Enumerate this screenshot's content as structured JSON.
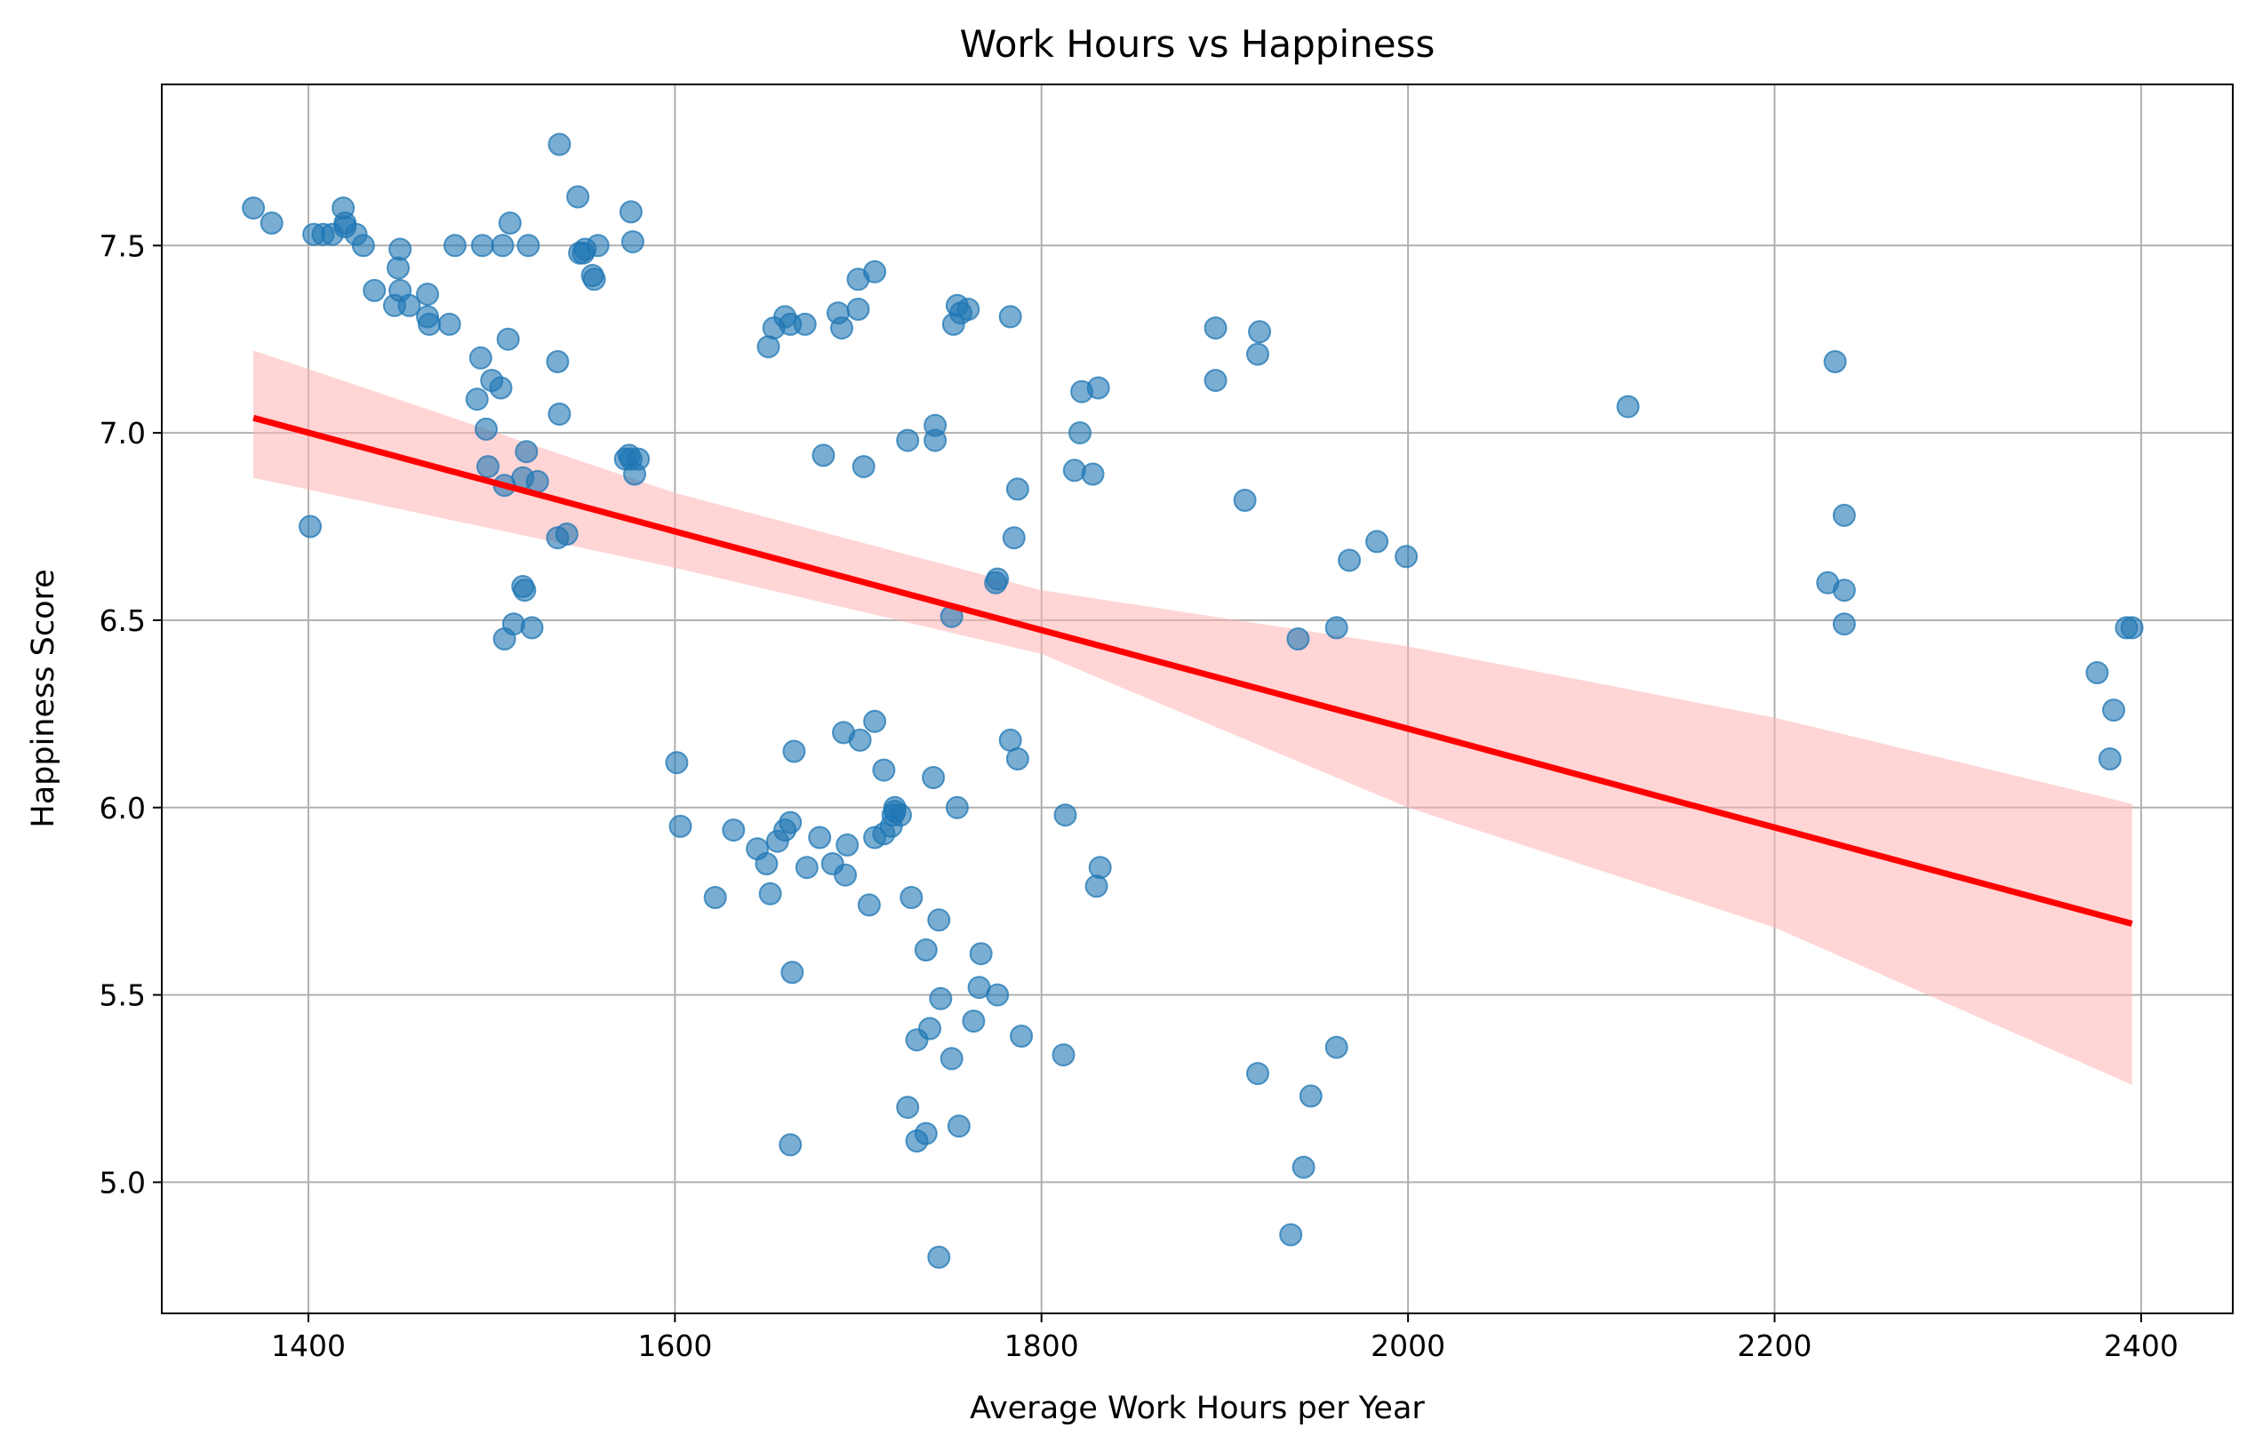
{
  "chart_data": {
    "type": "scatter",
    "title": "Work Hours vs Happiness",
    "xlabel": "Average Work Hours per Year",
    "ylabel": "Happiness Score",
    "xlim": [
      1320,
      2450
    ],
    "ylim": [
      4.65,
      7.93
    ],
    "xticks": [
      1400,
      1600,
      1800,
      2000,
      2200,
      2400
    ],
    "yticks": [
      5.0,
      5.5,
      6.0,
      6.5,
      7.0,
      7.5
    ],
    "xtick_labels": [
      "1400",
      "1600",
      "1800",
      "2000",
      "2200",
      "2400"
    ],
    "ytick_labels": [
      "5.0",
      "5.5",
      "6.0",
      "6.5",
      "7.0",
      "7.5"
    ],
    "grid": true,
    "colors": {
      "points": "#1f77b4",
      "trend": "#ff0000",
      "band": "#ffb3b3"
    },
    "trend": {
      "x": [
        1370,
        2395
      ],
      "y": [
        7.04,
        5.69
      ]
    },
    "band": {
      "x": [
        1370,
        1600,
        1800,
        2000,
        2200,
        2395
      ],
      "lower": [
        6.88,
        6.64,
        6.41,
        6.0,
        5.68,
        5.26
      ],
      "upper": [
        7.22,
        6.84,
        6.58,
        6.43,
        6.24,
        6.01
      ]
    },
    "points": [
      {
        "x": 1370,
        "y": 7.6
      },
      {
        "x": 1380,
        "y": 7.56
      },
      {
        "x": 1403,
        "y": 7.53
      },
      {
        "x": 1408,
        "y": 7.53
      },
      {
        "x": 1413,
        "y": 7.53
      },
      {
        "x": 1419,
        "y": 7.6
      },
      {
        "x": 1420,
        "y": 7.56
      },
      {
        "x": 1420,
        "y": 7.55
      },
      {
        "x": 1426,
        "y": 7.53
      },
      {
        "x": 1430,
        "y": 7.5
      },
      {
        "x": 1450,
        "y": 7.49
      },
      {
        "x": 1449,
        "y": 7.44
      },
      {
        "x": 1436,
        "y": 7.38
      },
      {
        "x": 1450,
        "y": 7.38
      },
      {
        "x": 1447,
        "y": 7.34
      },
      {
        "x": 1455,
        "y": 7.34
      },
      {
        "x": 1465,
        "y": 7.37
      },
      {
        "x": 1465,
        "y": 7.31
      },
      {
        "x": 1466,
        "y": 7.29
      },
      {
        "x": 1477,
        "y": 7.29
      },
      {
        "x": 1480,
        "y": 7.5
      },
      {
        "x": 1495,
        "y": 7.5
      },
      {
        "x": 1506,
        "y": 7.5
      },
      {
        "x": 1520,
        "y": 7.5
      },
      {
        "x": 1510,
        "y": 7.56
      },
      {
        "x": 1537,
        "y": 7.77
      },
      {
        "x": 1547,
        "y": 7.63
      },
      {
        "x": 1548,
        "y": 7.48
      },
      {
        "x": 1550,
        "y": 7.48
      },
      {
        "x": 1551,
        "y": 7.49
      },
      {
        "x": 1555,
        "y": 7.42
      },
      {
        "x": 1556,
        "y": 7.41
      },
      {
        "x": 1558,
        "y": 7.5
      },
      {
        "x": 1576,
        "y": 7.59
      },
      {
        "x": 1577,
        "y": 7.51
      },
      {
        "x": 1509,
        "y": 7.25
      },
      {
        "x": 1536,
        "y": 7.19
      },
      {
        "x": 1494,
        "y": 7.2
      },
      {
        "x": 1500,
        "y": 7.14
      },
      {
        "x": 1505,
        "y": 7.12
      },
      {
        "x": 1492,
        "y": 7.09
      },
      {
        "x": 1537,
        "y": 7.05
      },
      {
        "x": 1497,
        "y": 7.01
      },
      {
        "x": 1498,
        "y": 6.91
      },
      {
        "x": 1519,
        "y": 6.95
      },
      {
        "x": 1507,
        "y": 6.86
      },
      {
        "x": 1517,
        "y": 6.88
      },
      {
        "x": 1525,
        "y": 6.87
      },
      {
        "x": 1573,
        "y": 6.93
      },
      {
        "x": 1575,
        "y": 6.94
      },
      {
        "x": 1576,
        "y": 6.93
      },
      {
        "x": 1580,
        "y": 6.93
      },
      {
        "x": 1578,
        "y": 6.89
      },
      {
        "x": 1536,
        "y": 6.72
      },
      {
        "x": 1541,
        "y": 6.73
      },
      {
        "x": 1401,
        "y": 6.75
      },
      {
        "x": 1517,
        "y": 6.59
      },
      {
        "x": 1518,
        "y": 6.58
      },
      {
        "x": 1512,
        "y": 6.49
      },
      {
        "x": 1522,
        "y": 6.48
      },
      {
        "x": 1507,
        "y": 6.45
      },
      {
        "x": 1601,
        "y": 6.12
      },
      {
        "x": 1603,
        "y": 5.95
      },
      {
        "x": 1632,
        "y": 5.94
      },
      {
        "x": 1622,
        "y": 5.76
      },
      {
        "x": 1645,
        "y": 5.89
      },
      {
        "x": 1650,
        "y": 5.85
      },
      {
        "x": 1652,
        "y": 5.77
      },
      {
        "x": 1656,
        "y": 5.91
      },
      {
        "x": 1660,
        "y": 5.94
      },
      {
        "x": 1663,
        "y": 5.96
      },
      {
        "x": 1664,
        "y": 5.56
      },
      {
        "x": 1663,
        "y": 5.1
      },
      {
        "x": 1665,
        "y": 6.15
      },
      {
        "x": 1672,
        "y": 5.84
      },
      {
        "x": 1679,
        "y": 5.92
      },
      {
        "x": 1686,
        "y": 5.85
      },
      {
        "x": 1693,
        "y": 5.82
      },
      {
        "x": 1694,
        "y": 5.9
      },
      {
        "x": 1692,
        "y": 6.2
      },
      {
        "x": 1701,
        "y": 6.18
      },
      {
        "x": 1709,
        "y": 6.23
      },
      {
        "x": 1706,
        "y": 5.74
      },
      {
        "x": 1709,
        "y": 5.92
      },
      {
        "x": 1714,
        "y": 5.93
      },
      {
        "x": 1714,
        "y": 6.1
      },
      {
        "x": 1718,
        "y": 5.95
      },
      {
        "x": 1719,
        "y": 5.98
      },
      {
        "x": 1720,
        "y": 6.0
      },
      {
        "x": 1720,
        "y": 5.99
      },
      {
        "x": 1723,
        "y": 5.98
      },
      {
        "x": 1729,
        "y": 5.76
      },
      {
        "x": 1741,
        "y": 6.08
      },
      {
        "x": 1744,
        "y": 5.7
      },
      {
        "x": 1737,
        "y": 5.62
      },
      {
        "x": 1754,
        "y": 6.0
      },
      {
        "x": 1767,
        "y": 5.61
      },
      {
        "x": 1766,
        "y": 5.52
      },
      {
        "x": 1776,
        "y": 5.5
      },
      {
        "x": 1745,
        "y": 5.49
      },
      {
        "x": 1763,
        "y": 5.43
      },
      {
        "x": 1789,
        "y": 5.39
      },
      {
        "x": 1739,
        "y": 5.41
      },
      {
        "x": 1732,
        "y": 5.38
      },
      {
        "x": 1751,
        "y": 5.33
      },
      {
        "x": 1812,
        "y": 5.34
      },
      {
        "x": 1727,
        "y": 5.2
      },
      {
        "x": 1737,
        "y": 5.13
      },
      {
        "x": 1732,
        "y": 5.11
      },
      {
        "x": 1755,
        "y": 5.15
      },
      {
        "x": 1744,
        "y": 4.8
      },
      {
        "x": 1783,
        "y": 6.18
      },
      {
        "x": 1787,
        "y": 6.13
      },
      {
        "x": 1813,
        "y": 5.98
      },
      {
        "x": 1832,
        "y": 5.84
      },
      {
        "x": 1830,
        "y": 5.79
      },
      {
        "x": 1651,
        "y": 7.23
      },
      {
        "x": 1654,
        "y": 7.28
      },
      {
        "x": 1660,
        "y": 7.31
      },
      {
        "x": 1663,
        "y": 7.29
      },
      {
        "x": 1671,
        "y": 7.29
      },
      {
        "x": 1689,
        "y": 7.32
      },
      {
        "x": 1691,
        "y": 7.28
      },
      {
        "x": 1700,
        "y": 7.33
      },
      {
        "x": 1700,
        "y": 7.41
      },
      {
        "x": 1709,
        "y": 7.43
      },
      {
        "x": 1752,
        "y": 7.29
      },
      {
        "x": 1754,
        "y": 7.34
      },
      {
        "x": 1756,
        "y": 7.32
      },
      {
        "x": 1760,
        "y": 7.33
      },
      {
        "x": 1783,
        "y": 7.31
      },
      {
        "x": 1681,
        "y": 6.94
      },
      {
        "x": 1703,
        "y": 6.91
      },
      {
        "x": 1727,
        "y": 6.98
      },
      {
        "x": 1742,
        "y": 7.02
      },
      {
        "x": 1742,
        "y": 6.98
      },
      {
        "x": 1787,
        "y": 6.85
      },
      {
        "x": 1785,
        "y": 6.72
      },
      {
        "x": 1775,
        "y": 6.6
      },
      {
        "x": 1776,
        "y": 6.61
      },
      {
        "x": 1751,
        "y": 6.51
      },
      {
        "x": 1821,
        "y": 7.0
      },
      {
        "x": 1822,
        "y": 7.11
      },
      {
        "x": 1831,
        "y": 7.12
      },
      {
        "x": 1818,
        "y": 6.9
      },
      {
        "x": 1828,
        "y": 6.89
      },
      {
        "x": 1895,
        "y": 7.28
      },
      {
        "x": 1895,
        "y": 7.14
      },
      {
        "x": 1919,
        "y": 7.27
      },
      {
        "x": 1918,
        "y": 7.21
      },
      {
        "x": 1911,
        "y": 6.82
      },
      {
        "x": 1940,
        "y": 6.45
      },
      {
        "x": 1961,
        "y": 6.48
      },
      {
        "x": 1968,
        "y": 6.66
      },
      {
        "x": 1983,
        "y": 6.71
      },
      {
        "x": 1999,
        "y": 6.67
      },
      {
        "x": 1918,
        "y": 5.29
      },
      {
        "x": 1961,
        "y": 5.36
      },
      {
        "x": 1947,
        "y": 5.23
      },
      {
        "x": 1943,
        "y": 5.04
      },
      {
        "x": 1936,
        "y": 4.86
      },
      {
        "x": 2120,
        "y": 7.07
      },
      {
        "x": 2233,
        "y": 7.19
      },
      {
        "x": 2238,
        "y": 6.78
      },
      {
        "x": 2229,
        "y": 6.6
      },
      {
        "x": 2238,
        "y": 6.58
      },
      {
        "x": 2238,
        "y": 6.49
      },
      {
        "x": 2376,
        "y": 6.36
      },
      {
        "x": 2385,
        "y": 6.26
      },
      {
        "x": 2383,
        "y": 6.13
      },
      {
        "x": 2392,
        "y": 6.48
      },
      {
        "x": 2395,
        "y": 6.48
      }
    ]
  }
}
